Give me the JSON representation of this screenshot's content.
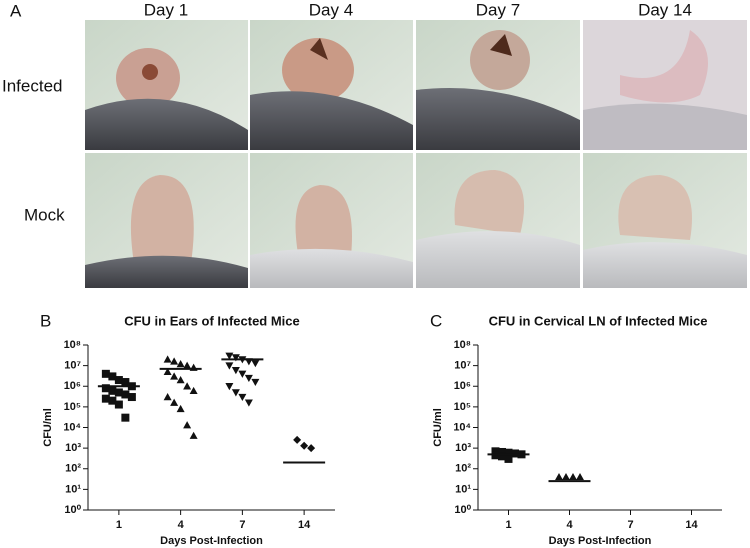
{
  "figure": {
    "panel_label": "A",
    "columns": [
      "Day 1",
      "Day 4",
      "Day 7",
      "Day 14"
    ],
    "rows": [
      "Infected",
      "Mock"
    ]
  },
  "chart_data": [
    {
      "type": "scatter",
      "panel": "B",
      "title": "CFU in Ears of Infected Mice",
      "ylabel": "CFU/ml",
      "xlabel": "Days Post-Infection",
      "categories": [
        "1",
        "4",
        "7",
        "14"
      ],
      "markers": [
        "square",
        "triangle",
        "triangle-down",
        "diamond"
      ],
      "color": "#111111",
      "values": [
        [
          4000000,
          3000000,
          2000000,
          1600000,
          1000000,
          800000,
          600000,
          500000,
          400000,
          300000,
          250000,
          200000,
          130000,
          30000
        ],
        [
          20000000,
          16000000,
          12000000,
          10000000,
          8000000,
          5000000,
          3000000,
          2000000,
          1000000,
          600000,
          300000,
          160000,
          80000,
          13000,
          4000
        ],
        [
          30000000,
          25000000,
          20000000,
          16000000,
          13000000,
          10000000,
          6000000,
          4000000,
          2500000,
          1600000,
          1000000,
          500000,
          300000,
          160000
        ],
        [
          2500,
          1300,
          1000
        ]
      ],
      "means": [
        1000000,
        7000000,
        20000000,
        200
      ],
      "log_y": true,
      "ylim": [
        1,
        100000000
      ],
      "yticks": [
        {
          "value": 1,
          "label": "10⁰"
        },
        {
          "value": 10,
          "label": "10¹"
        },
        {
          "value": 100,
          "label": "10²"
        },
        {
          "value": 1000,
          "label": "10³"
        },
        {
          "value": 10000,
          "label": "10⁴"
        },
        {
          "value": 100000,
          "label": "10⁵"
        },
        {
          "value": 1000000,
          "label": "10⁶"
        },
        {
          "value": 10000000,
          "label": "10⁷"
        },
        {
          "value": 100000000,
          "label": "10⁸"
        }
      ]
    },
    {
      "type": "scatter",
      "panel": "C",
      "title": "CFU in Cervical LN of Infected Mice",
      "ylabel": "CFU/ml",
      "xlabel": "Days Post-Infection",
      "categories": [
        "1",
        "4",
        "7",
        "14"
      ],
      "markers": [
        "square",
        "triangle",
        "triangle-down",
        "diamond"
      ],
      "color": "#111111",
      "values": [
        [
          700,
          650,
          600,
          550,
          500,
          450,
          400,
          300
        ],
        [
          40,
          40,
          40,
          40
        ],
        [],
        []
      ],
      "means": [
        500,
        25,
        null,
        null
      ],
      "log_y": true,
      "ylim": [
        1,
        100000000
      ],
      "yticks": [
        {
          "value": 1,
          "label": "10⁰"
        },
        {
          "value": 10,
          "label": "10¹"
        },
        {
          "value": 100,
          "label": "10²"
        },
        {
          "value": 1000,
          "label": "10³"
        },
        {
          "value": 10000,
          "label": "10⁴"
        },
        {
          "value": 100000,
          "label": "10⁵"
        },
        {
          "value": 1000000,
          "label": "10⁶"
        },
        {
          "value": 10000000,
          "label": "10⁷"
        },
        {
          "value": 100000000,
          "label": "10⁸"
        }
      ]
    }
  ]
}
